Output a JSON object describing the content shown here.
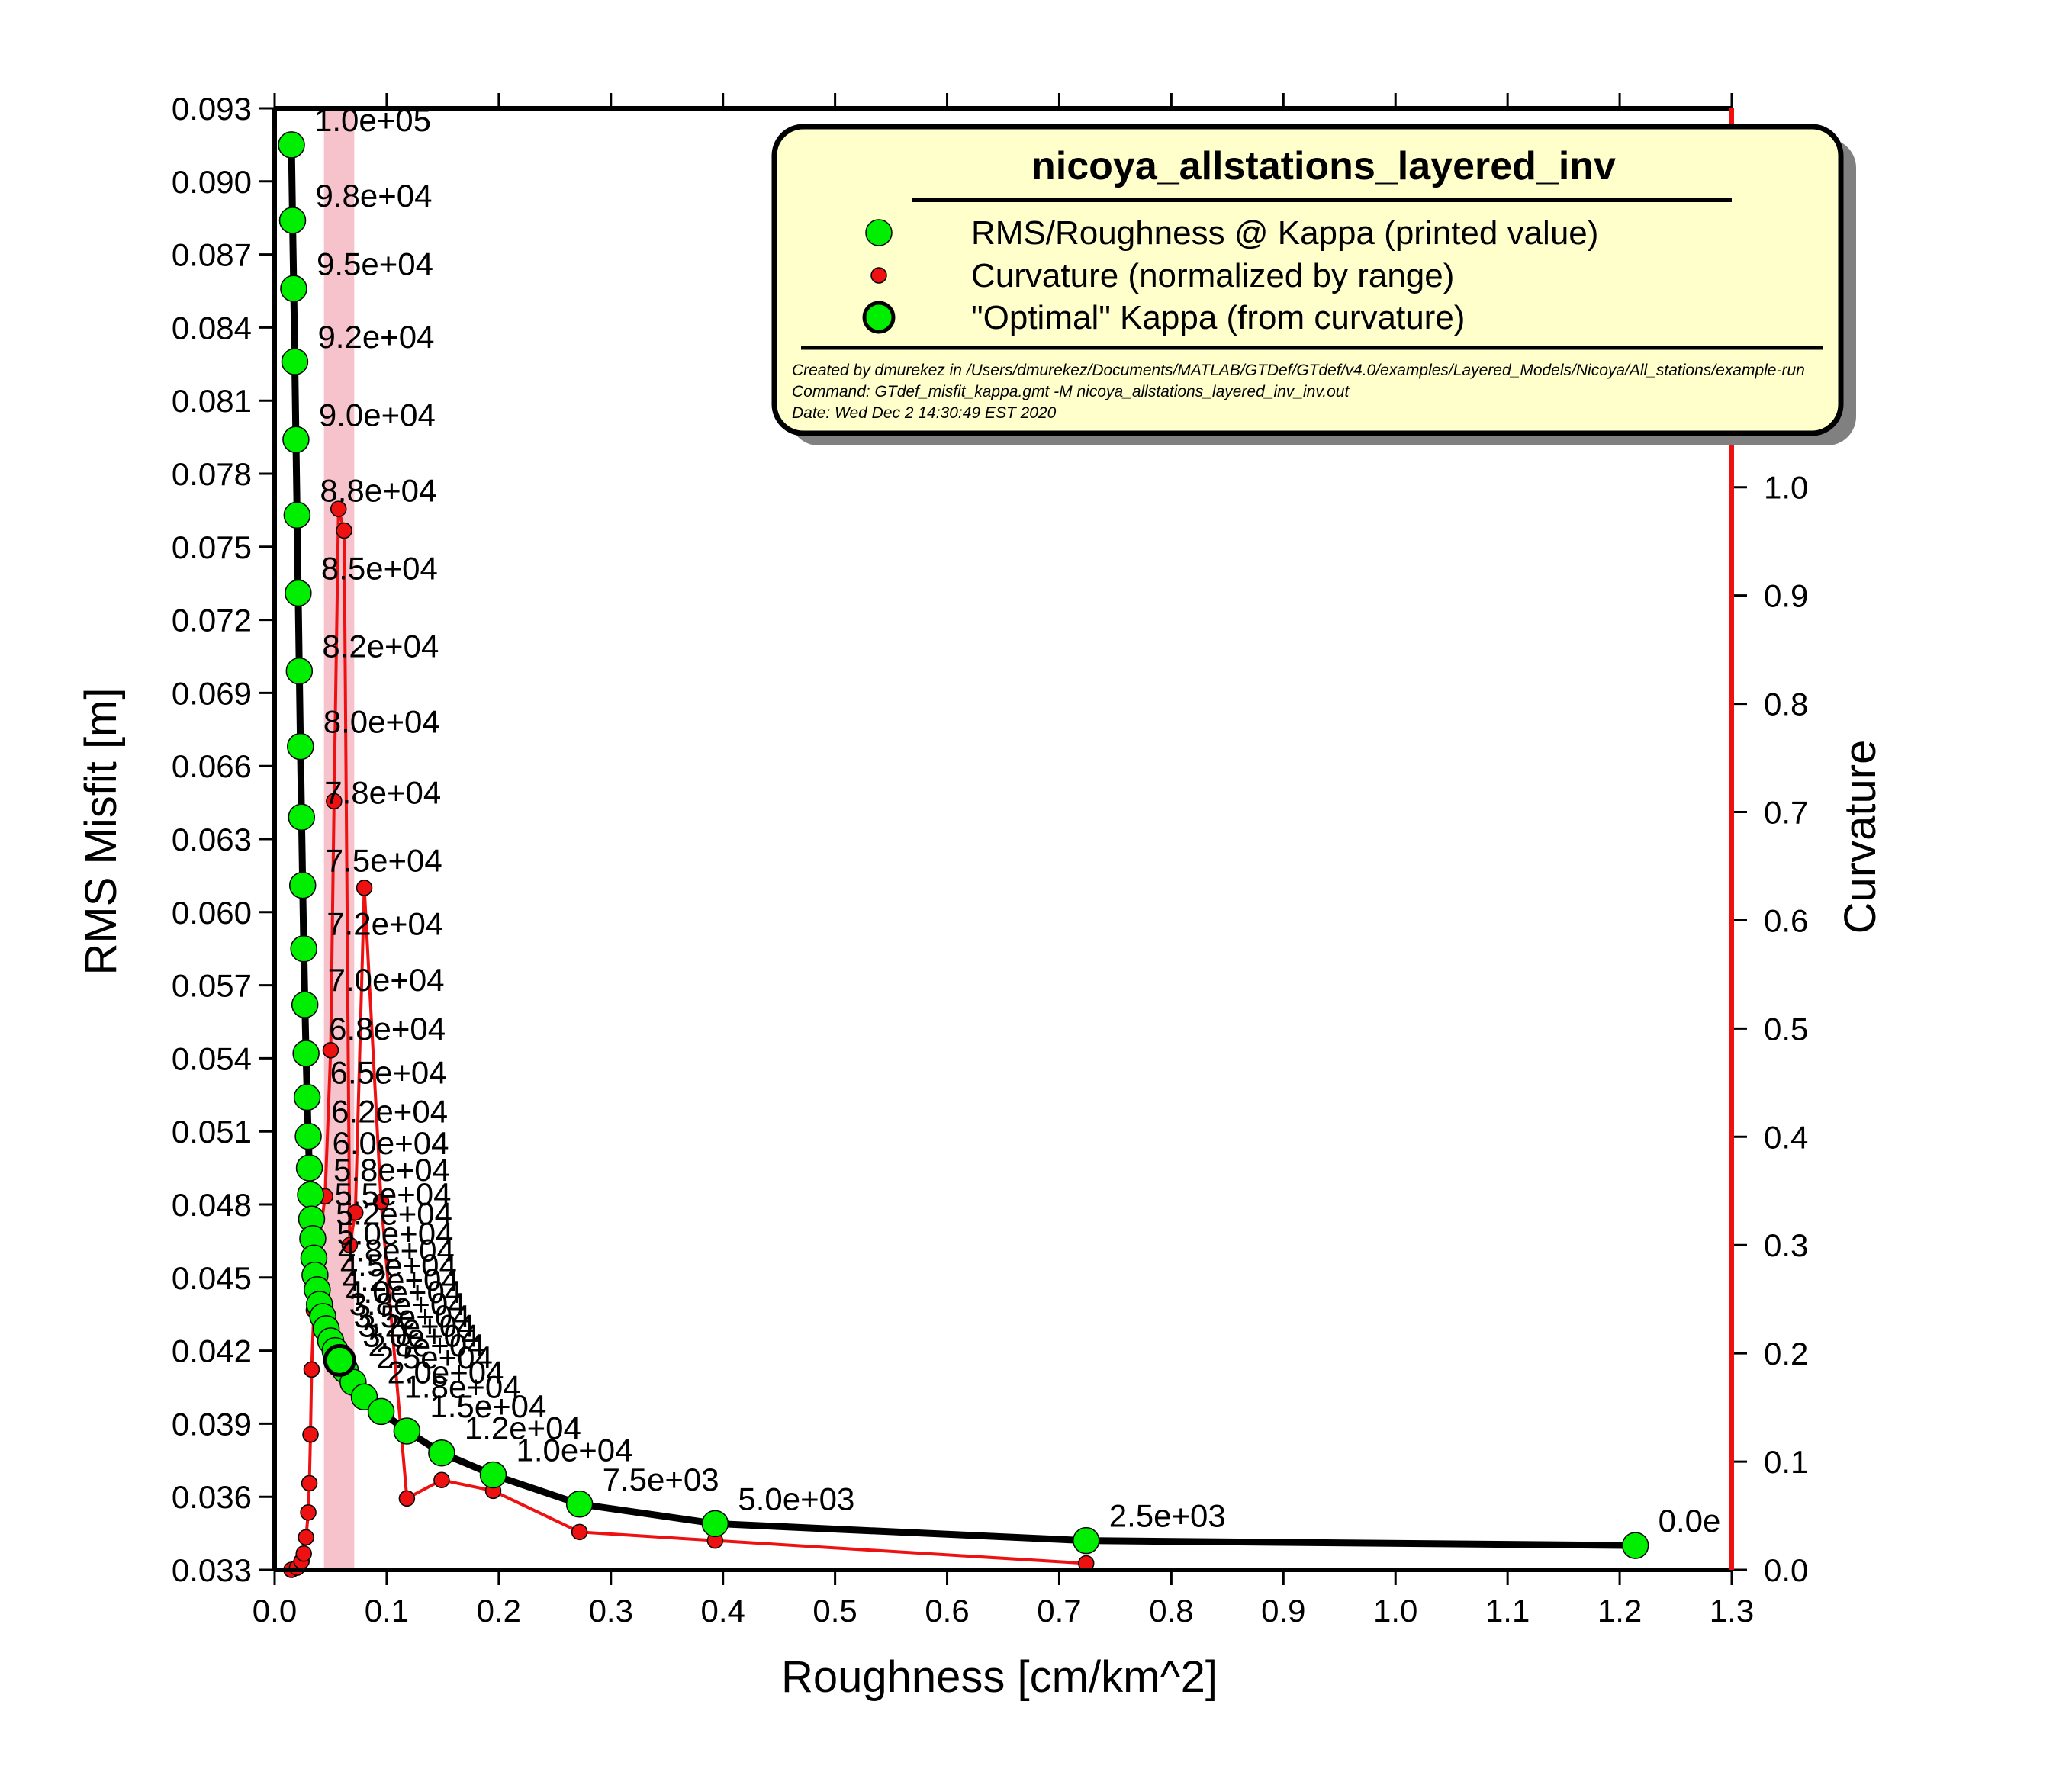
{
  "chart_data": {
    "type": "line",
    "x_axis": {
      "label": "Roughness [cm/km^2]",
      "range": [
        0.0,
        1.3
      ],
      "ticks": [
        "0.0",
        "0.1",
        "0.2",
        "0.3",
        "0.4",
        "0.5",
        "0.6",
        "0.7",
        "0.8",
        "0.9",
        "1.0",
        "1.1",
        "1.2",
        "1.3"
      ]
    },
    "y_axis_left": {
      "label": "RMS Misfit [m]",
      "range": [
        0.033,
        0.093
      ],
      "ticks": [
        "0.033",
        "0.036",
        "0.039",
        "0.042",
        "0.045",
        "0.048",
        "0.051",
        "0.054",
        "0.057",
        "0.060",
        "0.063",
        "0.066",
        "0.069",
        "0.072",
        "0.075",
        "0.078",
        "0.081",
        "0.084",
        "0.087",
        "0.090",
        "0.093"
      ]
    },
    "y_axis_right": {
      "label": "Curvature",
      "range": [
        0.0,
        1.35
      ],
      "ticks": [
        "0.0",
        "0.1",
        "0.2",
        "0.3",
        "0.4",
        "0.5",
        "0.6",
        "0.7",
        "0.8",
        "0.9",
        "1.0"
      ]
    },
    "optimal_band": {
      "x_range": [
        0.044,
        0.071
      ],
      "color": "#f6c3cc"
    },
    "optimal_point": {
      "x": 0.058,
      "y": 0.0416
    },
    "series": [
      {
        "name": "RMS/Roughness @ Kappa (printed value)",
        "axis": "left",
        "color": "#00ee00",
        "points": [
          [
            0.015,
            0.0915
          ],
          [
            0.016,
            0.0884
          ],
          [
            0.017,
            0.0856
          ],
          [
            0.018,
            0.0826
          ],
          [
            0.019,
            0.0794
          ],
          [
            0.02,
            0.0763
          ],
          [
            0.021,
            0.0731
          ],
          [
            0.022,
            0.0699
          ],
          [
            0.023,
            0.0668
          ],
          [
            0.024,
            0.0639
          ],
          [
            0.025,
            0.0611
          ],
          [
            0.026,
            0.0585
          ],
          [
            0.027,
            0.0562
          ],
          [
            0.028,
            0.0542
          ],
          [
            0.029,
            0.0524
          ],
          [
            0.03,
            0.0508
          ],
          [
            0.031,
            0.0495
          ],
          [
            0.032,
            0.0484
          ],
          [
            0.033,
            0.0474
          ],
          [
            0.034,
            0.0466
          ],
          [
            0.035,
            0.0458
          ],
          [
            0.036,
            0.0451
          ],
          [
            0.038,
            0.0445
          ],
          [
            0.04,
            0.0439
          ],
          [
            0.043,
            0.0434
          ],
          [
            0.046,
            0.0429
          ],
          [
            0.05,
            0.0424
          ],
          [
            0.054,
            0.042
          ],
          [
            0.058,
            0.0416
          ],
          [
            0.063,
            0.0412
          ],
          [
            0.07,
            0.0407
          ],
          [
            0.08,
            0.0401
          ],
          [
            0.095,
            0.0395
          ],
          [
            0.118,
            0.0387
          ],
          [
            0.149,
            0.0378
          ],
          [
            0.195,
            0.0369
          ],
          [
            0.272,
            0.0357
          ],
          [
            0.393,
            0.0349
          ],
          [
            0.724,
            0.0342
          ],
          [
            1.214,
            0.034
          ]
        ]
      },
      {
        "name": "Curvature (normalized by range)",
        "axis": "right",
        "color": "#ee1111",
        "points": [
          [
            0.015,
            0.0
          ],
          [
            0.02,
            0.002
          ],
          [
            0.024,
            0.008
          ],
          [
            0.026,
            0.015
          ],
          [
            0.028,
            0.03
          ],
          [
            0.03,
            0.053
          ],
          [
            0.031,
            0.08
          ],
          [
            0.032,
            0.125
          ],
          [
            0.033,
            0.185
          ],
          [
            0.035,
            0.24
          ],
          [
            0.038,
            0.29
          ],
          [
            0.045,
            0.345
          ],
          [
            0.05,
            0.48
          ],
          [
            0.053,
            0.71
          ],
          [
            0.057,
            0.98
          ],
          [
            0.062,
            0.96
          ],
          [
            0.067,
            0.3
          ],
          [
            0.072,
            0.33
          ],
          [
            0.08,
            0.63
          ],
          [
            0.095,
            0.34
          ],
          [
            0.118,
            0.066
          ],
          [
            0.149,
            0.083
          ],
          [
            0.195,
            0.073
          ],
          [
            0.272,
            0.035
          ],
          [
            0.393,
            0.027
          ],
          [
            0.724,
            0.006
          ]
        ]
      }
    ],
    "kappa_labels": [
      {
        "text": "1.0e+05",
        "x": 0.015,
        "y": 0.0915
      },
      {
        "text": "9.8e+04",
        "x": 0.016,
        "y": 0.0884
      },
      {
        "text": "9.5e+04",
        "x": 0.017,
        "y": 0.0856
      },
      {
        "text": "9.2e+04",
        "x": 0.018,
        "y": 0.0826
      },
      {
        "text": "9.0e+04",
        "x": 0.019,
        "y": 0.0794
      },
      {
        "text": "8.8e+04",
        "x": 0.02,
        "y": 0.0763
      },
      {
        "text": "8.5e+04",
        "x": 0.021,
        "y": 0.0731
      },
      {
        "text": "8.2e+04",
        "x": 0.022,
        "y": 0.0699
      },
      {
        "text": "8.0e+04",
        "x": 0.023,
        "y": 0.0668
      },
      {
        "text": "7.8e+04",
        "x": 0.024,
        "y": 0.0639
      },
      {
        "text": "7.5e+04",
        "x": 0.025,
        "y": 0.0611
      },
      {
        "text": "7.2e+04",
        "x": 0.026,
        "y": 0.0585
      },
      {
        "text": "7.0e+04",
        "x": 0.027,
        "y": 0.0562
      },
      {
        "text": "6.8e+04",
        "x": 0.028,
        "y": 0.0542
      },
      {
        "text": "6.5e+04",
        "x": 0.029,
        "y": 0.0524
      },
      {
        "text": "6.2e+04",
        "x": 0.03,
        "y": 0.0508
      },
      {
        "text": "6.0e+04",
        "x": 0.031,
        "y": 0.0495
      },
      {
        "text": "5.8e+04",
        "x": 0.032,
        "y": 0.0484
      },
      {
        "text": "5.5e+04",
        "x": 0.033,
        "y": 0.0474
      },
      {
        "text": "5.2e+04",
        "x": 0.034,
        "y": 0.0466
      },
      {
        "text": "5.0e+04",
        "x": 0.035,
        "y": 0.0458
      },
      {
        "text": "4.8e+04",
        "x": 0.036,
        "y": 0.0451
      },
      {
        "text": "4.5e+04",
        "x": 0.038,
        "y": 0.0445
      },
      {
        "text": "4.2e+04",
        "x": 0.04,
        "y": 0.0439
      },
      {
        "text": "4.0e+04",
        "x": 0.043,
        "y": 0.0434
      },
      {
        "text": "3.8e+04",
        "x": 0.046,
        "y": 0.0429
      },
      {
        "text": "3.5e+04",
        "x": 0.05,
        "y": 0.0424
      },
      {
        "text": "3.2e+04",
        "x": 0.054,
        "y": 0.042
      },
      {
        "text": "3.0e+04",
        "x": 0.058,
        "y": 0.0416
      },
      {
        "text": "2.8e+04",
        "x": 0.063,
        "y": 0.0412
      },
      {
        "text": "2.5e+04",
        "x": 0.07,
        "y": 0.0407
      },
      {
        "text": "2.0e+04",
        "x": 0.08,
        "y": 0.0401
      },
      {
        "text": "1.8e+04",
        "x": 0.095,
        "y": 0.0395
      },
      {
        "text": "1.5e+04",
        "x": 0.118,
        "y": 0.0387
      },
      {
        "text": "1.2e+04",
        "x": 0.149,
        "y": 0.0378
      },
      {
        "text": "1.0e+04",
        "x": 0.195,
        "y": 0.0369
      },
      {
        "text": "7.5e+03",
        "x": 0.272,
        "y": 0.0357
      },
      {
        "text": "5.0e+03",
        "x": 0.393,
        "y": 0.0349
      },
      {
        "text": "2.5e+03",
        "x": 0.724,
        "y": 0.0342
      },
      {
        "text": "0.0e",
        "x": 1.214,
        "y": 0.034
      }
    ]
  },
  "legend": {
    "title": "nicoya_allstations_layered_inv",
    "entries": [
      {
        "label": "RMS/Roughness @ Kappa (printed value)",
        "symbol": "green-circle"
      },
      {
        "label": "Curvature (normalized by range)",
        "symbol": "red-dot"
      },
      {
        "label": "\"Optimal\" Kappa (from curvature)",
        "symbol": "green-circle-bold"
      }
    ],
    "meta": [
      "Created by dmurekez in /Users/dmurekez/Documents/MATLAB/GTDef/GTdef/v4.0/examples/Layered_Models/Nicoya/All_stations/example-run",
      "Command: GTdef_misfit_kappa.gmt -M nicoya_allstations_layered_inv_inv.out",
      "Date: Wed Dec  2 14:30:49 EST 2020"
    ]
  }
}
